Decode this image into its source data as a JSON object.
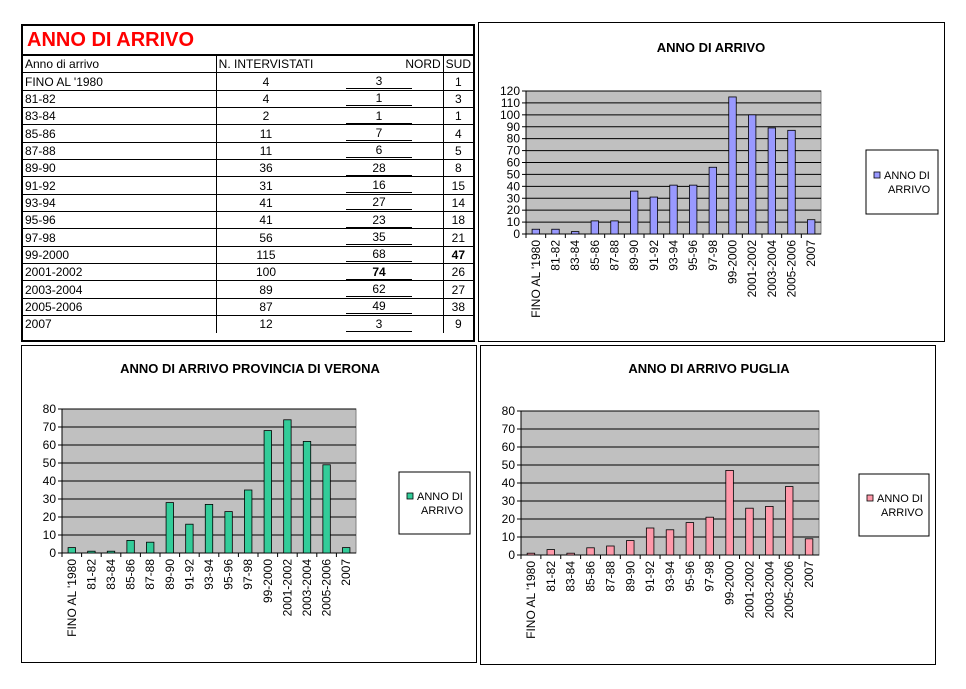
{
  "table": {
    "title": "ANNO DI ARRIVO",
    "headers": {
      "label": "Anno di arrivo",
      "total": "N. INTERVISTATI",
      "nord": "NORD",
      "sud": "SUD"
    },
    "rows": [
      {
        "label": "FINO AL '1980",
        "total": "4",
        "nord": "3",
        "sud": "1"
      },
      {
        "label": "81-82",
        "total": "4",
        "nord": "1",
        "sud": "3"
      },
      {
        "label": "83-84",
        "total": "2",
        "nord": "1",
        "sud": "1"
      },
      {
        "label": "85-86",
        "total": "11",
        "nord": "7",
        "sud": "4"
      },
      {
        "label": "87-88",
        "total": "11",
        "nord": "6",
        "sud": "5"
      },
      {
        "label": "89-90",
        "total": "36",
        "nord": "28",
        "sud": "8"
      },
      {
        "label": "91-92",
        "total": "31",
        "nord": "16",
        "sud": "15"
      },
      {
        "label": "93-94",
        "total": "41",
        "nord": "27",
        "sud": "14"
      },
      {
        "label": "95-96",
        "total": "41",
        "nord": "23",
        "sud": "18"
      },
      {
        "label": "97-98",
        "total": "56",
        "nord": "35",
        "sud": "21"
      },
      {
        "label": "99-2000",
        "total": "115",
        "nord": "68",
        "sud": "47"
      },
      {
        "label": "2001-2002",
        "total": "100",
        "nord": "74",
        "sud": "26"
      },
      {
        "label": "2003-2004",
        "total": "89",
        "nord": "62",
        "sud": "27"
      },
      {
        "label": "2005-2006",
        "total": "87",
        "nord": "49",
        "sud": "38"
      },
      {
        "label": "2007",
        "total": "12",
        "nord": "3",
        "sud": "9"
      }
    ]
  },
  "chart_data": [
    {
      "type": "bar",
      "title": "ANNO DI ARRIVO",
      "categories": [
        "FINO AL '1980",
        "81-82",
        "83-84",
        "85-86",
        "87-88",
        "89-90",
        "91-92",
        "93-94",
        "95-96",
        "97-98",
        "99-2000",
        "2001-2002",
        "2003-2004",
        "2005-2006",
        "2007"
      ],
      "series": [
        {
          "name": "ANNO DI ARRIVO",
          "values": [
            4,
            4,
            2,
            11,
            11,
            36,
            31,
            41,
            41,
            56,
            115,
            100,
            89,
            87,
            12
          ]
        }
      ],
      "ylim": [
        0,
        120
      ],
      "ystep": 10,
      "legend": "right",
      "grid": true,
      "bar_color": "#9999ff",
      "plot_bg": "#c0c0c0"
    },
    {
      "type": "bar",
      "title": "ANNO DI ARRIVO PROVINCIA DI VERONA",
      "categories": [
        "FINO AL '1980",
        "81-82",
        "83-84",
        "85-86",
        "87-88",
        "89-90",
        "91-92",
        "93-94",
        "95-96",
        "97-98",
        "99-2000",
        "2001-2002",
        "2003-2004",
        "2005-2006",
        "2007"
      ],
      "series": [
        {
          "name": "ANNO DI ARRIVO",
          "values": [
            3,
            1,
            1,
            7,
            6,
            28,
            16,
            27,
            23,
            35,
            68,
            74,
            62,
            49,
            3
          ]
        }
      ],
      "ylim": [
        0,
        80
      ],
      "ystep": 10,
      "legend": "right",
      "grid": true,
      "bar_color": "#33cc99",
      "plot_bg": "#c0c0c0"
    },
    {
      "type": "bar",
      "title": "ANNO DI ARRIVO PUGLIA",
      "categories": [
        "FINO AL '1980",
        "81-82",
        "83-84",
        "85-86",
        "87-88",
        "89-90",
        "91-92",
        "93-94",
        "95-96",
        "97-98",
        "99-2000",
        "2001-2002",
        "2003-2004",
        "2005-2006",
        "2007"
      ],
      "series": [
        {
          "name": "ANNO DI ARRIVO",
          "values": [
            1,
            3,
            1,
            4,
            5,
            8,
            15,
            14,
            18,
            21,
            47,
            26,
            27,
            38,
            9
          ]
        }
      ],
      "ylim": [
        0,
        80
      ],
      "ystep": 10,
      "legend": "right",
      "grid": true,
      "bar_color": "#ff99aa",
      "plot_bg": "#c0c0c0"
    }
  ]
}
